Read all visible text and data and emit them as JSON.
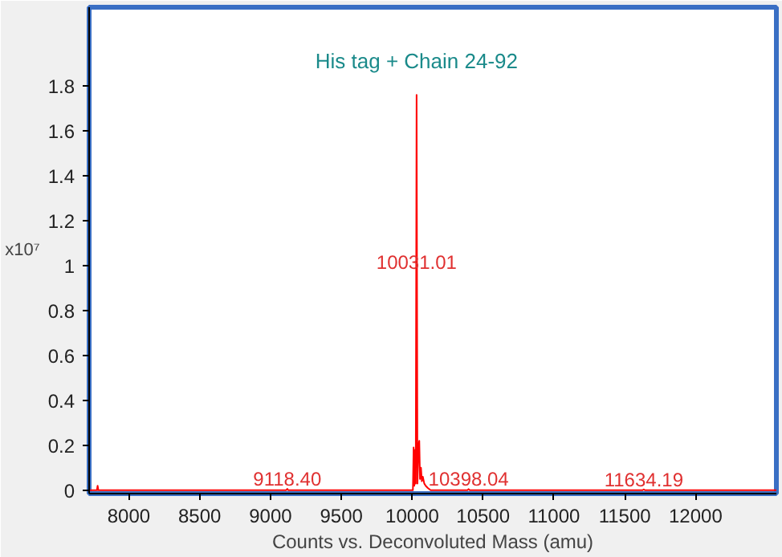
{
  "chart_data": {
    "type": "line",
    "title": "His tag + Chain 24-92",
    "xlabel": "Counts vs. Deconvoluted Mass (amu)",
    "x": [
      7720,
      7775,
      7780,
      7785,
      9110,
      9118.4,
      9126,
      10005,
      10010,
      10015,
      10020,
      10025,
      10031,
      10037,
      10045,
      10050,
      10055,
      10062,
      10068,
      10075,
      10085,
      10095,
      10110,
      10130,
      10390,
      10398.04,
      10406,
      11626,
      11634.19,
      11642,
      12570
    ],
    "series": [
      {
        "color": "#ff0000",
        "values": [
          0,
          0,
          0.02,
          0,
          0,
          0.006,
          0,
          0,
          0.19,
          0.02,
          0.18,
          0.03,
          1.76,
          0.03,
          0.2,
          0.22,
          0.05,
          0.1,
          0.04,
          0.06,
          0.03,
          0.02,
          0.01,
          0,
          0,
          0.005,
          0,
          0,
          0.004,
          0,
          0
        ]
      }
    ],
    "xlim": [
      7720,
      12570
    ],
    "ylim": [
      -0.015,
      2.15
    ],
    "xticks": [
      8000,
      8500,
      9000,
      9500,
      10000,
      10500,
      11000,
      11500,
      12000
    ],
    "yticks": [
      0,
      0.2,
      0.4,
      0.6,
      0.8,
      1,
      1.2,
      1.4,
      1.6,
      1.8
    ],
    "annotations": [
      "x10⁷",
      {
        "text": "10031.01",
        "x": 10031.01,
        "y": 0.97
      },
      {
        "text": "9118.40",
        "x": 9118.4,
        "y": 0.006
      },
      {
        "text": "10398.04",
        "x": 10398.04,
        "y": 0.005
      },
      {
        "text": "11634.19",
        "x": 11634.19,
        "y": 0.004
      }
    ],
    "grid": false,
    "marker": "none",
    "line_style": "solid"
  }
}
